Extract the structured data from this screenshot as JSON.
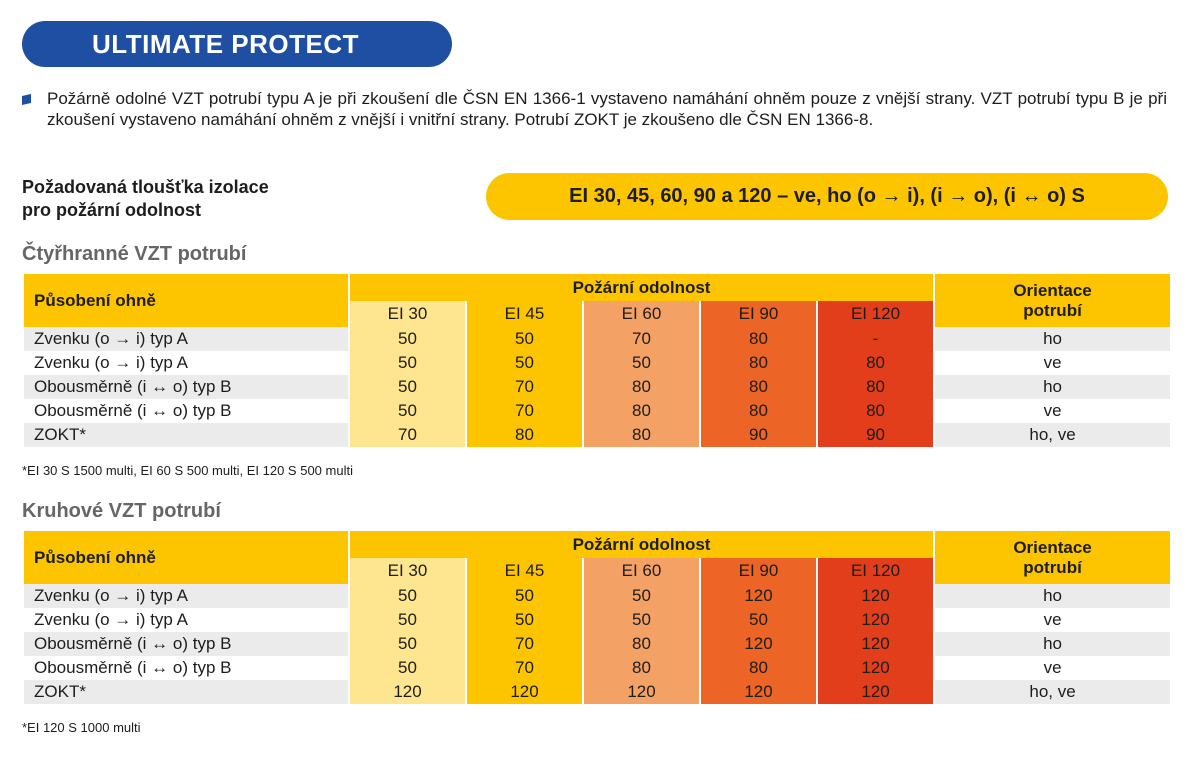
{
  "header": {
    "title": "ULTIMATE PROTECT"
  },
  "intro": "Požárně odolné VZT potrubí typu A je při zkoušení dle ČSN EN 1366-1 vystaveno namáhání ohněm pouze z vnější strany. VZT potrubí typu B je při zkoušení vystaveno namáhání ohněm z vnější i vnitřní strany. Potrubí ZOKT je zkoušeno dle ČSN EN 1366-8.",
  "thickness": {
    "label_line1": "Požadovaná tloušťka izolace",
    "label_line2": "pro požární odolnost",
    "value": "EI 30, 45, 60, 90 a 120 – ve, ho (o → i), (i → o), (i ↔ o) S"
  },
  "colors": {
    "brand_blue": "#1f4fa2",
    "yellow": "#fcc500",
    "ei30": "#fde68f",
    "ei45": "#fcc500",
    "ei60": "#f4a166",
    "ei90": "#ec6426",
    "ei120": "#e33e1b",
    "row_alt": "#ebebeb"
  },
  "table_headers": {
    "fire_exposure": "Působení ohně",
    "fire_resistance": "Požární odolnost",
    "orientation_line1": "Orientace",
    "orientation_line2": "potrubí",
    "classes": [
      "EI 30",
      "EI 45",
      "EI 60",
      "EI 90",
      "EI 120"
    ]
  },
  "rect": {
    "heading": "Čtyřhranné VZT potrubí",
    "rows": [
      {
        "label": "Zvenku (o → i) typ A",
        "values": [
          "50",
          "50",
          "70",
          "80",
          "-"
        ],
        "orientation": "ho"
      },
      {
        "label": "Zvenku (o → i) typ A",
        "values": [
          "50",
          "50",
          "50",
          "80",
          "80"
        ],
        "orientation": "ve"
      },
      {
        "label": "Obousměrně (i ↔ o) typ B",
        "values": [
          "50",
          "70",
          "80",
          "80",
          "80"
        ],
        "orientation": "ho"
      },
      {
        "label": "Obousměrně (i ↔ o) typ B",
        "values": [
          "50",
          "70",
          "80",
          "80",
          "80"
        ],
        "orientation": "ve"
      },
      {
        "label": "ZOKT*",
        "values": [
          "70",
          "80",
          "80",
          "90",
          "90"
        ],
        "orientation": "ho, ve"
      }
    ],
    "footnote": "*EI 30 S 1500 multi, EI 60 S 500 multi, EI 120 S 500 multi"
  },
  "round": {
    "heading": "Kruhové VZT potrubí",
    "rows": [
      {
        "label": "Zvenku (o → i) typ A",
        "values": [
          "50",
          "50",
          "50",
          "120",
          "120"
        ],
        "orientation": "ho"
      },
      {
        "label": "Zvenku (o → i) typ A",
        "values": [
          "50",
          "50",
          "50",
          "50",
          "120"
        ],
        "orientation": "ve"
      },
      {
        "label": "Obousměrně (i ↔ o) typ B",
        "values": [
          "50",
          "70",
          "80",
          "120",
          "120"
        ],
        "orientation": "ho"
      },
      {
        "label": "Obousměrně (i ↔ o) typ B",
        "values": [
          "50",
          "70",
          "80",
          "80",
          "120"
        ],
        "orientation": "ve"
      },
      {
        "label": "ZOKT*",
        "values": [
          "120",
          "120",
          "120",
          "120",
          "120"
        ],
        "orientation": "ho, ve"
      }
    ],
    "footnote": "*EI 120 S 1000 multi"
  }
}
